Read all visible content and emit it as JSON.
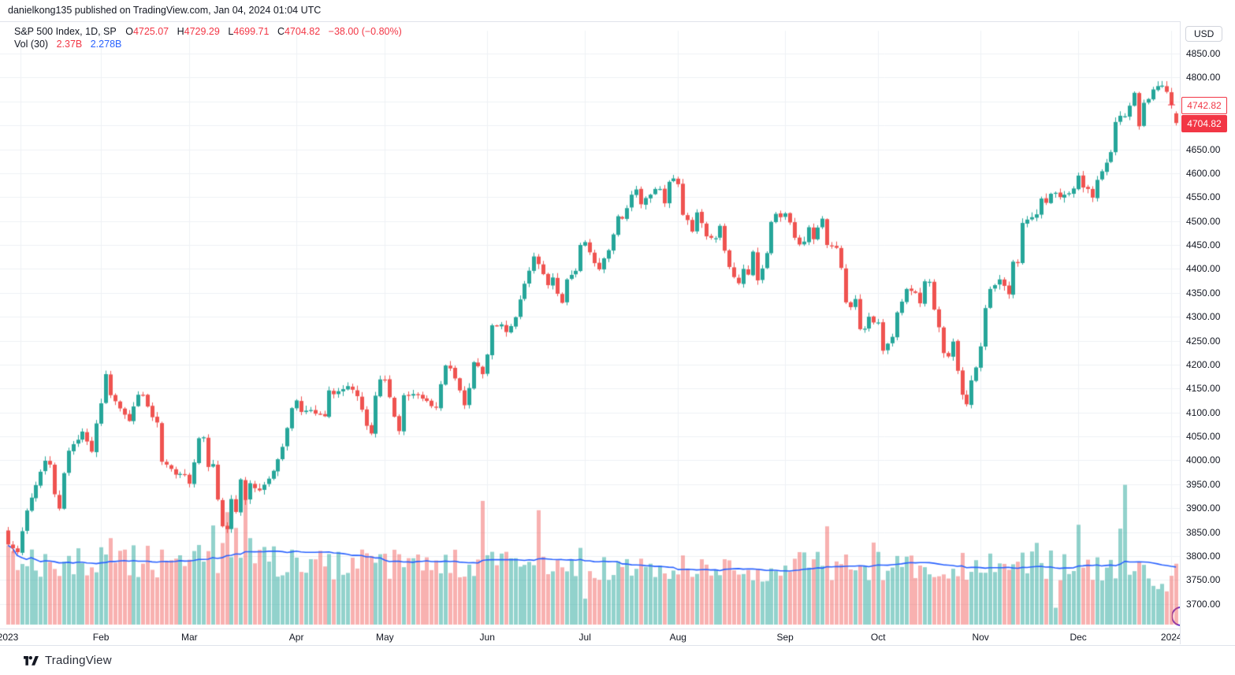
{
  "header": {
    "attribution": "danielkong135 published on TradingView.com, Jan 04, 2024 01:04 UTC"
  },
  "legend": {
    "symbol": "S&P 500 Index, 1D, SP",
    "open_label": "O",
    "open_value": "4725.07",
    "high_label": "H",
    "high_value": "4729.29",
    "low_label": "L",
    "low_value": "4699.71",
    "close_label": "C",
    "close_value": "4704.82",
    "change": "−38.00 (−0.80%)",
    "vol_label": "Vol (30)",
    "vol_value": "2.37B",
    "vol_ma_value": "2.278B"
  },
  "axis": {
    "currency": "USD",
    "prev_close": "4742.82",
    "last_price": "4704.82"
  },
  "footer": {
    "brand": "TradingView"
  },
  "chart_data": {
    "type": "candlestick",
    "title": "S&P 500 Index, 1D, SP",
    "currency": "USD",
    "total_days": 252,
    "first_open": 3853.29,
    "last_bar": {
      "open": 4725.07,
      "high": 4729.29,
      "low": 4699.71,
      "close": 4704.82,
      "change": -38.0,
      "change_pct": -0.8
    },
    "prev_close": 4742.82,
    "y_axis": {
      "min": 3700,
      "max": 4850,
      "tick_step": 50
    },
    "x_axis": {
      "labels": [
        {
          "label": "2023",
          "day": 0
        },
        {
          "label": "Feb",
          "day": 20
        },
        {
          "label": "Mar",
          "day": 39
        },
        {
          "label": "Apr",
          "day": 62
        },
        {
          "label": "May",
          "day": 81
        },
        {
          "label": "Jun",
          "day": 103
        },
        {
          "label": "Jul",
          "day": 124
        },
        {
          "label": "Aug",
          "day": 144
        },
        {
          "label": "Sep",
          "day": 167
        },
        {
          "label": "Oct",
          "day": 187
        },
        {
          "label": "Nov",
          "day": 209
        },
        {
          "label": "Dec",
          "day": 230
        },
        {
          "label": "2024",
          "day": 250
        }
      ]
    },
    "anchors": [
      [
        0,
        3824
      ],
      [
        2,
        3808
      ],
      [
        4,
        3895
      ],
      [
        8,
        3999
      ],
      [
        9,
        3991
      ],
      [
        10,
        3929
      ],
      [
        11,
        3899
      ],
      [
        12,
        3973
      ],
      [
        13,
        4020
      ],
      [
        16,
        4060
      ],
      [
        18,
        4018
      ],
      [
        19,
        4077
      ],
      [
        20,
        4119
      ],
      [
        21,
        4180
      ],
      [
        22,
        4136
      ],
      [
        26,
        4082
      ],
      [
        28,
        4137
      ],
      [
        29,
        4136
      ],
      [
        31,
        4090
      ],
      [
        32,
        4079
      ],
      [
        33,
        3997
      ],
      [
        34,
        3991
      ],
      [
        36,
        3970
      ],
      [
        38,
        3970
      ],
      [
        39,
        3951
      ],
      [
        41,
        4046
      ],
      [
        42,
        4048
      ],
      [
        43,
        3986
      ],
      [
        44,
        3992
      ],
      [
        45,
        3918
      ],
      [
        46,
        3862
      ],
      [
        47,
        3856
      ],
      [
        48,
        3919
      ],
      [
        49,
        3892
      ],
      [
        50,
        3960
      ],
      [
        51,
        3917
      ],
      [
        52,
        3952
      ],
      [
        54,
        3937
      ],
      [
        55,
        3949
      ],
      [
        57,
        3978
      ],
      [
        59,
        4028
      ],
      [
        61,
        4109
      ],
      [
        62,
        4125
      ],
      [
        63,
        4101
      ],
      [
        65,
        4105
      ],
      [
        68,
        4092
      ],
      [
        69,
        4146
      ],
      [
        70,
        4138
      ],
      [
        73,
        4155
      ],
      [
        75,
        4134
      ],
      [
        77,
        4072
      ],
      [
        78,
        4056
      ],
      [
        79,
        4135
      ],
      [
        80,
        4169
      ],
      [
        81,
        4168
      ],
      [
        83,
        4091
      ],
      [
        84,
        4061
      ],
      [
        85,
        4136
      ],
      [
        88,
        4138
      ],
      [
        90,
        4124
      ],
      [
        92,
        4110
      ],
      [
        93,
        4159
      ],
      [
        94,
        4198
      ],
      [
        95,
        4192
      ],
      [
        97,
        4146
      ],
      [
        98,
        4115
      ],
      [
        99,
        4151
      ],
      [
        100,
        4205
      ],
      [
        102,
        4180
      ],
      [
        103,
        4221
      ],
      [
        104,
        4282
      ],
      [
        106,
        4284
      ],
      [
        107,
        4268
      ],
      [
        109,
        4299
      ],
      [
        111,
        4369
      ],
      [
        113,
        4426
      ],
      [
        114,
        4410
      ],
      [
        115,
        4389
      ],
      [
        116,
        4366
      ],
      [
        117,
        4382
      ],
      [
        118,
        4348
      ],
      [
        119,
        4329
      ],
      [
        120,
        4378
      ],
      [
        122,
        4396
      ],
      [
        123,
        4450
      ],
      [
        124,
        4456
      ],
      [
        126,
        4412
      ],
      [
        127,
        4399
      ],
      [
        129,
        4439
      ],
      [
        130,
        4472
      ],
      [
        131,
        4510
      ],
      [
        132,
        4505
      ],
      [
        134,
        4555
      ],
      [
        135,
        4566
      ],
      [
        136,
        4535
      ],
      [
        138,
        4555
      ],
      [
        139,
        4567
      ],
      [
        140,
        4567
      ],
      [
        141,
        4537
      ],
      [
        142,
        4582
      ],
      [
        143,
        4589
      ],
      [
        144,
        4577
      ],
      [
        145,
        4513
      ],
      [
        146,
        4502
      ],
      [
        147,
        4478
      ],
      [
        148,
        4518
      ],
      [
        150,
        4468
      ],
      [
        152,
        4464
      ],
      [
        153,
        4490
      ],
      [
        154,
        4438
      ],
      [
        155,
        4404
      ],
      [
        157,
        4370
      ],
      [
        158,
        4400
      ],
      [
        159,
        4388
      ],
      [
        160,
        4436
      ],
      [
        161,
        4376
      ],
      [
        163,
        4433
      ],
      [
        164,
        4498
      ],
      [
        165,
        4515
      ],
      [
        166,
        4508
      ],
      [
        167,
        4516
      ],
      [
        168,
        4497
      ],
      [
        169,
        4465
      ],
      [
        170,
        4451
      ],
      [
        171,
        4457
      ],
      [
        172,
        4487
      ],
      [
        173,
        4462
      ],
      [
        175,
        4505
      ],
      [
        176,
        4450
      ],
      [
        178,
        4444
      ],
      [
        179,
        4402
      ],
      [
        180,
        4330
      ],
      [
        181,
        4320
      ],
      [
        182,
        4337
      ],
      [
        183,
        4274
      ],
      [
        184,
        4275
      ],
      [
        185,
        4300
      ],
      [
        186,
        4288
      ],
      [
        187,
        4288
      ],
      [
        188,
        4229
      ],
      [
        190,
        4258
      ],
      [
        191,
        4309
      ],
      [
        193,
        4358
      ],
      [
        195,
        4350
      ],
      [
        196,
        4328
      ],
      [
        197,
        4374
      ],
      [
        198,
        4373
      ],
      [
        199,
        4315
      ],
      [
        200,
        4278
      ],
      [
        201,
        4224
      ],
      [
        202,
        4217
      ],
      [
        203,
        4248
      ],
      [
        204,
        4187
      ],
      [
        205,
        4137
      ],
      [
        206,
        4117
      ],
      [
        207,
        4167
      ],
      [
        208,
        4194
      ],
      [
        209,
        4238
      ],
      [
        210,
        4318
      ],
      [
        211,
        4358
      ],
      [
        212,
        4366
      ],
      [
        213,
        4378
      ],
      [
        215,
        4347
      ],
      [
        216,
        4415
      ],
      [
        217,
        4412
      ],
      [
        218,
        4496
      ],
      [
        219,
        4503
      ],
      [
        220,
        4508
      ],
      [
        221,
        4514
      ],
      [
        222,
        4547
      ],
      [
        223,
        4538
      ],
      [
        224,
        4557
      ],
      [
        225,
        4559
      ],
      [
        226,
        4550
      ],
      [
        227,
        4555
      ],
      [
        229,
        4568
      ],
      [
        230,
        4595
      ],
      [
        231,
        4570
      ],
      [
        232,
        4567
      ],
      [
        233,
        4549
      ],
      [
        234,
        4586
      ],
      [
        235,
        4604
      ],
      [
        236,
        4622
      ],
      [
        237,
        4644
      ],
      [
        238,
        4707
      ],
      [
        239,
        4720
      ],
      [
        240,
        4719
      ],
      [
        241,
        4741
      ],
      [
        242,
        4768
      ],
      [
        243,
        4698
      ],
      [
        244,
        4747
      ],
      [
        245,
        4755
      ],
      [
        246,
        4775
      ],
      [
        247,
        4782
      ],
      [
        248,
        4783
      ],
      [
        249,
        4770
      ],
      [
        250,
        4743
      ],
      [
        251,
        4704.82
      ]
    ],
    "volume": {
      "label": "Vol (30)",
      "last": "2.37B",
      "ma30": "2.278B",
      "half_days": [
        124,
        225
      ],
      "spikes": {
        "21": 1.35,
        "22": 1.3,
        "44": 1.25,
        "46": 1.5,
        "47": 1.6,
        "48": 1.4,
        "49": 1.3,
        "51": 2.05,
        "52": 1.3,
        "61": 1.25,
        "102": 1.8,
        "114": 1.75,
        "123": 1.2,
        "124": 0.45,
        "176": 1.8,
        "186": 1.2,
        "221": 1.15,
        "225": 0.38,
        "230": 1.5,
        "239": 1.5,
        "240": 2.1,
        "246": 0.65,
        "247": 0.7,
        "248": 0.65,
        "249": 0.75,
        "250": 0.8,
        "251": 0.95
      }
    },
    "colors": {
      "up": "#26a69a",
      "down": "#ef5350",
      "vol_up": "rgba(38,166,154,0.5)",
      "vol_down": "rgba(239,83,80,0.45)",
      "ma_line": "#2962ff",
      "grid": "#eef0f5",
      "accent_red": "#f23645",
      "accent_blue": "#2962ff"
    }
  }
}
